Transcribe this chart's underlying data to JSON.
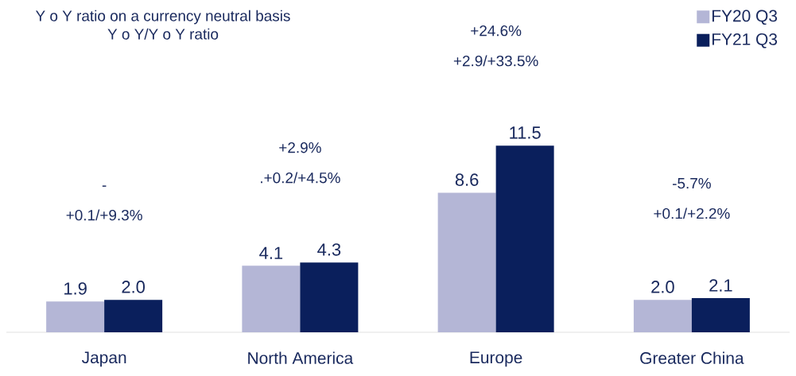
{
  "chart_data": {
    "type": "bar",
    "title": "Y o Y ratio on a currency neutral basis",
    "subtitle": "Y o Y/Y o Y ratio",
    "categories": [
      "Japan",
      "North America",
      "Europe",
      "Greater China"
    ],
    "series": [
      {
        "name": "FY20 Q3",
        "color": "#b4b6d6",
        "values": [
          1.9,
          4.1,
          8.6,
          2.0
        ],
        "value_labels": [
          "1.9",
          "4.1",
          "8.6",
          "2.0"
        ]
      },
      {
        "name": "FY21 Q3",
        "color": "#0a1f5c",
        "values": [
          2.0,
          4.3,
          11.5,
          2.1
        ],
        "value_labels": [
          "2.0",
          "4.3",
          "11.5",
          "2.1"
        ]
      }
    ],
    "legend": "top right",
    "annotations": [
      "-",
      "+0.1/+9.3%",
      "+2.9%",
      ".+0.2/+4.5%",
      "+24.6%",
      "+2.9/+33.5%",
      "-5.7%",
      "+0.1/+2.2%"
    ]
  }
}
